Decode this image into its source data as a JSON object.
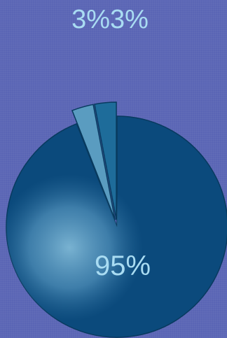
{
  "chart_data": {
    "type": "pie",
    "title": "",
    "labels_shown": [
      "3%",
      "3%",
      "95%"
    ],
    "series": [
      {
        "values": [
          3,
          3,
          95
        ]
      }
    ],
    "slices": [
      {
        "value": 3,
        "label": "3%",
        "color": "#5a9cc0"
      },
      {
        "value": 3,
        "label": "3%",
        "color": "#1e6c9a"
      },
      {
        "value": 95,
        "label": "95%",
        "color": "#0b4a7c"
      }
    ],
    "legend": "none",
    "exploded_slices": [
      0,
      1
    ]
  },
  "colors": {
    "background": "#5a65b5",
    "label": "#a9dcf2",
    "main_slice": "#0b4a7c",
    "highlight": "#6ea9cc",
    "edge": "#083a5f"
  }
}
